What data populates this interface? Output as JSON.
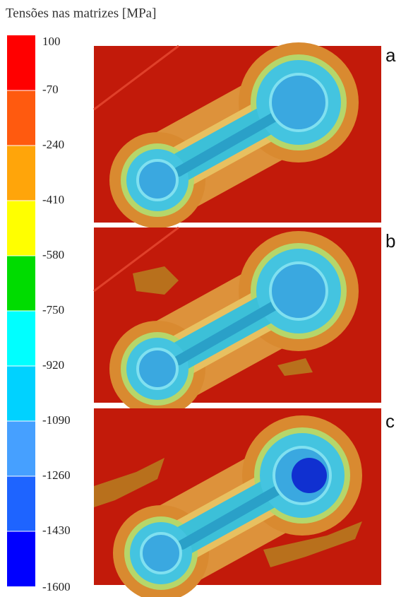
{
  "title": "Tensões nas matrizes [MPa]",
  "colorbar": {
    "ticks": [
      100,
      -70,
      -240,
      -410,
      -580,
      -750,
      -920,
      -1090,
      -1260,
      -1430,
      -1600
    ],
    "colors": [
      "#ff0000",
      "#ff5a0f",
      "#ffa50a",
      "#ffff00",
      "#00dc00",
      "#00ffff",
      "#00d2ff",
      "#46a0ff",
      "#1e64ff",
      "#0000ff"
    ]
  },
  "panels": [
    "a",
    "b",
    "c"
  ]
}
